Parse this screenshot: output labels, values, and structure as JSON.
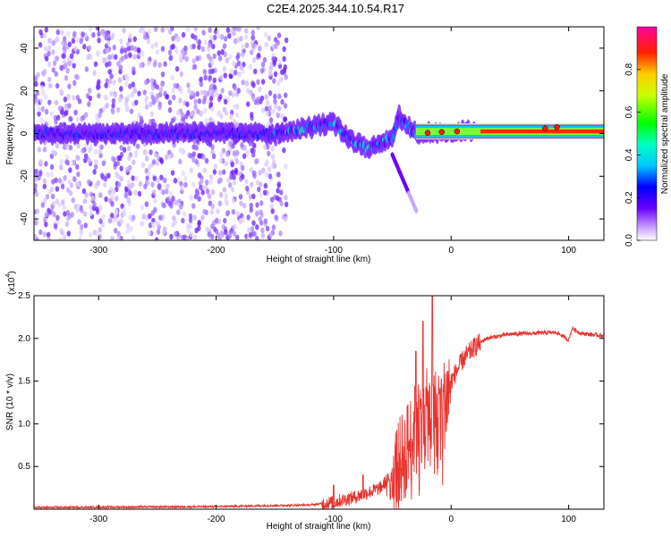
{
  "title": "C2E4.2025.344.10.54.R17",
  "colors": {
    "snr_line": "#e8322e",
    "axis": "#000000"
  },
  "chart_data": [
    {
      "type": "heatmap",
      "name": "spectrogram",
      "xlabel": "Height of straight line (km)",
      "ylabel": "Frequency (Hz)",
      "xlim": [
        -355,
        130
      ],
      "ylim": [
        -50,
        50
      ],
      "x_ticks": [
        -300,
        -200,
        -100,
        0,
        100
      ],
      "y_ticks": [
        -40,
        -20,
        0,
        20,
        40
      ],
      "colorbar": {
        "label": "Normalized spectral amplitude",
        "range": [
          0,
          1
        ],
        "ticks": [
          "0.0",
          "0.2",
          "0.4",
          "0.6",
          "0.8"
        ]
      },
      "description_of_ridge": [
        {
          "x": -355,
          "y": 0
        },
        {
          "x": -150,
          "y": 0
        },
        {
          "x": -120,
          "y": 3
        },
        {
          "x": -100,
          "y": 5
        },
        {
          "x": -85,
          "y": -3
        },
        {
          "x": -70,
          "y": -7
        },
        {
          "x": -50,
          "y": -2
        },
        {
          "x": -45,
          "y": 8
        },
        {
          "x": -30,
          "y": 0
        },
        {
          "x": 0,
          "y": 1
        },
        {
          "x": 60,
          "y": 1
        },
        {
          "x": 90,
          "y": 3
        },
        {
          "x": 130,
          "y": 1
        }
      ]
    },
    {
      "type": "line",
      "name": "snr",
      "xlabel": "Height of straight line (km)",
      "ylabel": "SNR (10 * v/v)",
      "scale_label": "(x10",
      "scale_exp": "4",
      "scale_close": ")",
      "xlim": [
        -355,
        130
      ],
      "ylim": [
        0,
        2.5
      ],
      "x_ticks": [
        -300,
        -200,
        -100,
        0,
        100
      ],
      "y_ticks": [
        0.5,
        1.0,
        1.5,
        2.0,
        2.5
      ],
      "y_tick_labels": [
        "0.5",
        "1.0",
        "1.5",
        "2.0",
        "2.5"
      ],
      "envelope": [
        {
          "x": -355,
          "y": 0.02
        },
        {
          "x": -200,
          "y": 0.03
        },
        {
          "x": -120,
          "y": 0.05
        },
        {
          "x": -100,
          "y": 0.08
        },
        {
          "x": -80,
          "y": 0.15
        },
        {
          "x": -60,
          "y": 0.25
        },
        {
          "x": -45,
          "y": 0.5
        },
        {
          "x": -35,
          "y": 0.8
        },
        {
          "x": -25,
          "y": 1.1
        },
        {
          "x": -15,
          "y": 1.1
        },
        {
          "x": -5,
          "y": 1.25
        },
        {
          "x": 0,
          "y": 1.5
        },
        {
          "x": 10,
          "y": 1.75
        },
        {
          "x": 20,
          "y": 1.9
        },
        {
          "x": 30,
          "y": 2.0
        },
        {
          "x": 50,
          "y": 2.05
        },
        {
          "x": 90,
          "y": 2.07
        },
        {
          "x": 100,
          "y": 1.98
        },
        {
          "x": 103,
          "y": 2.12
        },
        {
          "x": 110,
          "y": 2.06
        },
        {
          "x": 130,
          "y": 2.03
        }
      ],
      "peaks": [
        {
          "x": -30,
          "y": 1.85
        },
        {
          "x": -24,
          "y": 2.2
        },
        {
          "x": -16,
          "y": 2.5
        },
        {
          "x": -10,
          "y": 1.35
        },
        {
          "x": -100,
          "y": 0.28
        },
        {
          "x": -75,
          "y": 0.4
        }
      ]
    }
  ]
}
